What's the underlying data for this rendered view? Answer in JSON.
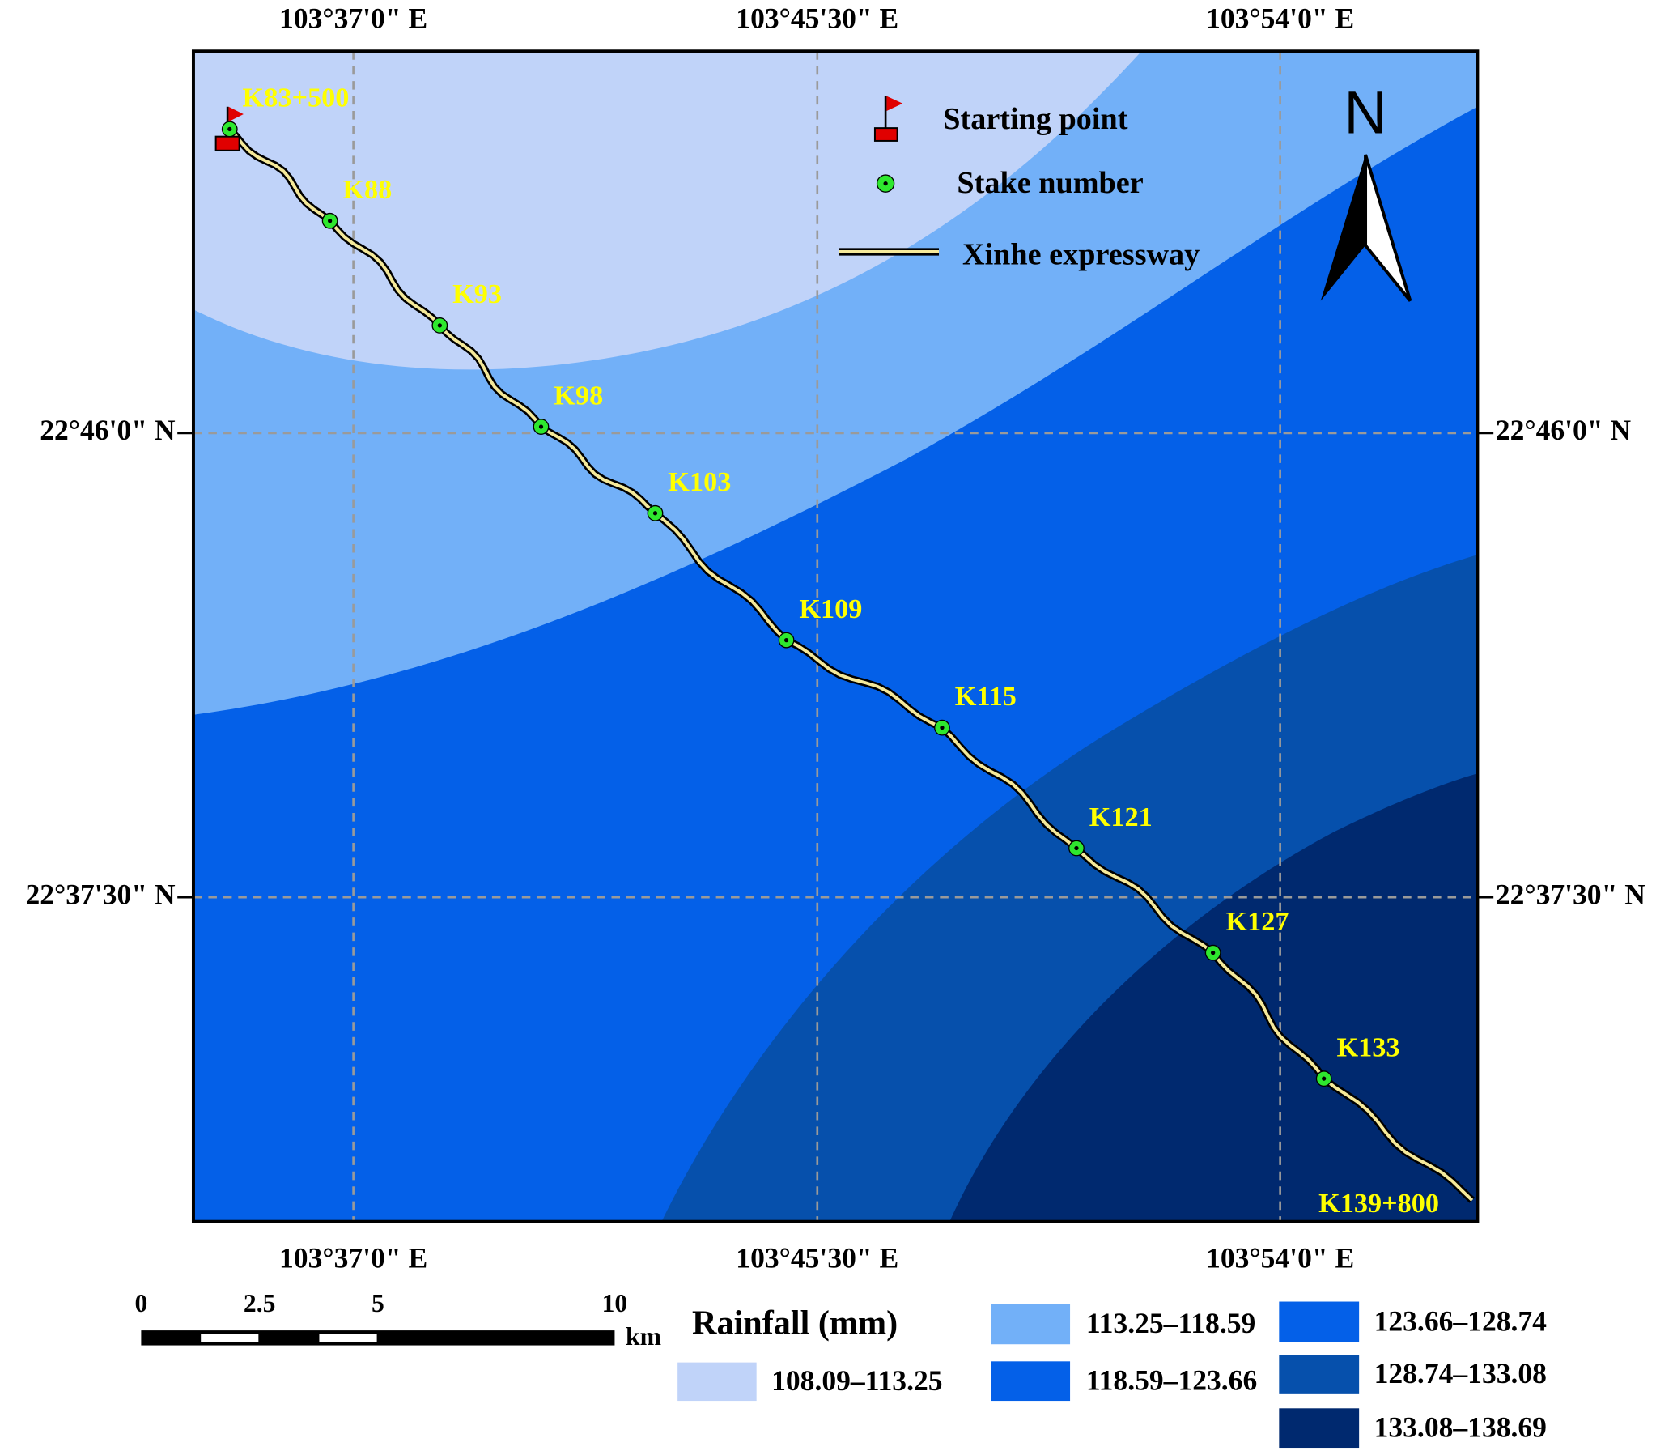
{
  "grid_labels": {
    "top": [
      "103°37'0\" E",
      "103°45'30\" E",
      "103°54'0\" E"
    ],
    "bottom": [
      "103°37'0\" E",
      "103°45'30\" E",
      "103°54'0\" E"
    ],
    "left": [
      "22°46'0\" N",
      "22°37'30\" N"
    ],
    "right": [
      "22°46'0\" N",
      "22°37'30\" N"
    ]
  },
  "stakes": [
    "K83+500",
    "K88",
    "K93",
    "K98",
    "K103",
    "K109",
    "K115",
    "K121",
    "K127",
    "K133",
    "K139+800"
  ],
  "legend": {
    "start": "Starting point",
    "stake": "Stake number",
    "road": "Xinhe expressway"
  },
  "north": "N",
  "rainfall_legend": {
    "title": "Rainfall (mm)",
    "classes": [
      "108.09–113.25",
      "113.25–118.59",
      "118.59–123.66",
      "123.66–128.74",
      "128.74–133.08",
      "133.08–138.69"
    ]
  },
  "scale_bar": {
    "labels": [
      "0",
      "2.5",
      "5",
      "10"
    ],
    "unit": "km"
  }
}
